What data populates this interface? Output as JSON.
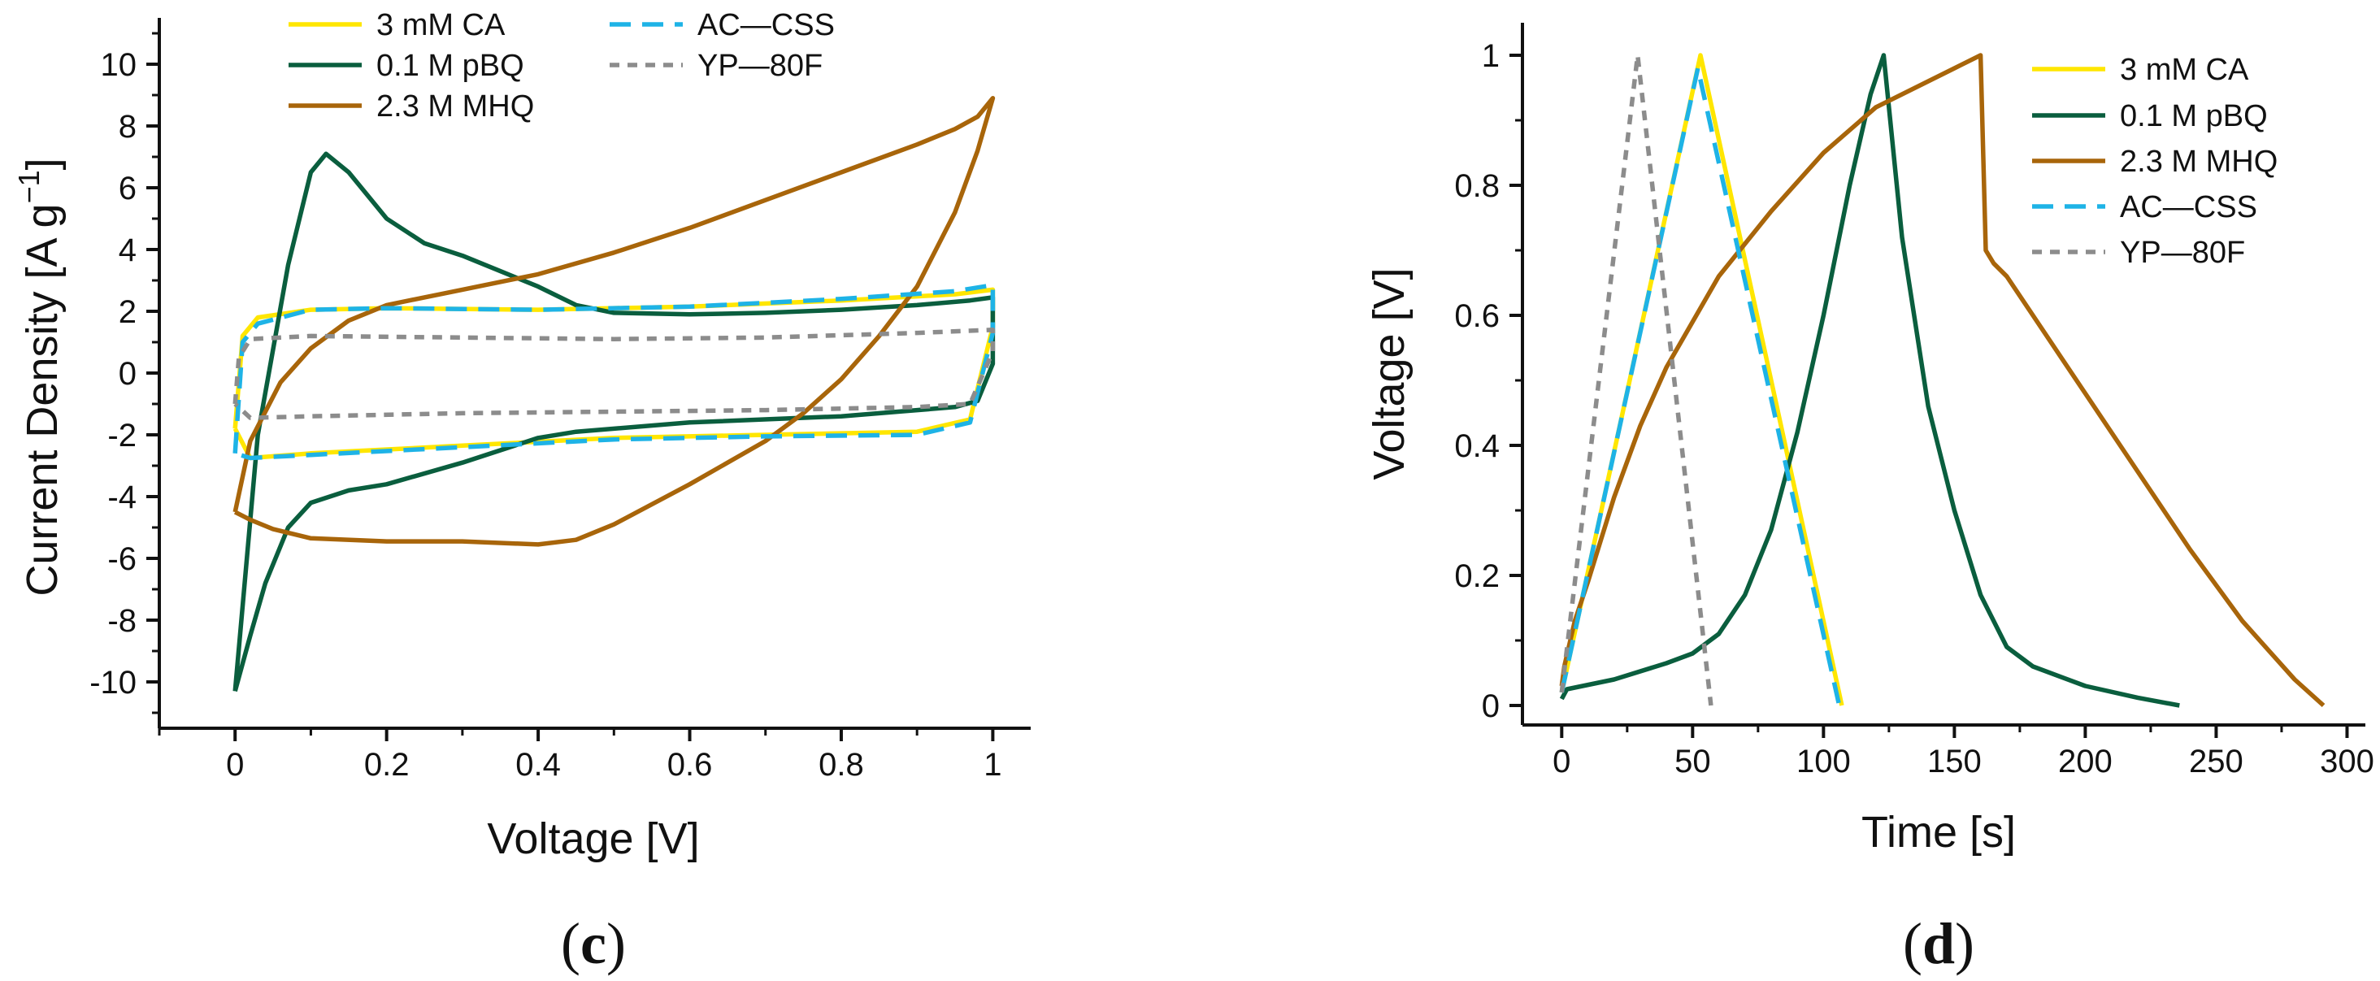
{
  "chart_data": [
    {
      "type": "line",
      "panel": "c",
      "xlabel": "Voltage [V]",
      "ylabel_main": "Current Density [A g",
      "ylabel_sup": "−1",
      "ylabel_end": "]",
      "xlim": [
        -0.1,
        1.05
      ],
      "ylim": [
        -11.5,
        11.5
      ],
      "xticks": [
        0,
        0.2,
        0.4,
        0.6,
        0.8,
        1
      ],
      "xtick_labels": [
        "0",
        "0.2",
        "0.4",
        "0.6",
        "0.8",
        "1"
      ],
      "yticks": [
        -10,
        -8,
        -6,
        -4,
        -2,
        0,
        2,
        4,
        6,
        8,
        10
      ],
      "ytick_labels": [
        "-10",
        "-8",
        "-6",
        "-4",
        "-2",
        "0",
        "2",
        "4",
        "6",
        "8",
        "10"
      ],
      "legend_position": "top",
      "series": [
        {
          "name": "3 mM CA",
          "color": "#FFE600",
          "dash": "solid",
          "x": [
            0.0,
            0.01,
            0.03,
            0.1,
            0.2,
            0.4,
            0.6,
            0.8,
            0.95,
            1.0,
            1.0,
            0.97,
            0.9,
            0.7,
            0.5,
            0.3,
            0.1,
            0.02,
            0.0
          ],
          "y": [
            -1.8,
            1.2,
            1.8,
            2.05,
            2.1,
            2.05,
            2.15,
            2.35,
            2.55,
            2.7,
            1.5,
            -1.5,
            -1.9,
            -2.0,
            -2.1,
            -2.35,
            -2.6,
            -2.75,
            -1.8
          ]
        },
        {
          "name": "0.1 M pBQ",
          "color": "#0A5E3E",
          "dash": "solid",
          "x": [
            0.0,
            0.03,
            0.07,
            0.1,
            0.12,
            0.15,
            0.2,
            0.25,
            0.3,
            0.35,
            0.4,
            0.45,
            0.5,
            0.6,
            0.7,
            0.8,
            0.9,
            0.97,
            1.0,
            1.0,
            0.98,
            0.95,
            0.9,
            0.8,
            0.6,
            0.45,
            0.4,
            0.3,
            0.2,
            0.15,
            0.1,
            0.07,
            0.04,
            0.02,
            0.0
          ],
          "y": [
            -10.3,
            -2.0,
            3.5,
            6.5,
            7.1,
            6.5,
            5.0,
            4.2,
            3.8,
            3.3,
            2.8,
            2.2,
            1.95,
            1.9,
            1.95,
            2.05,
            2.2,
            2.35,
            2.45,
            0.3,
            -0.9,
            -1.1,
            -1.2,
            -1.4,
            -1.6,
            -1.9,
            -2.1,
            -2.9,
            -3.6,
            -3.8,
            -4.2,
            -5.0,
            -6.8,
            -8.5,
            -10.3
          ]
        },
        {
          "name": "2.3 M MHQ",
          "color": "#A8650A",
          "dash": "solid",
          "x": [
            0.0,
            0.02,
            0.06,
            0.1,
            0.15,
            0.2,
            0.3,
            0.4,
            0.5,
            0.6,
            0.7,
            0.8,
            0.9,
            0.95,
            0.98,
            1.0,
            0.98,
            0.95,
            0.9,
            0.85,
            0.8,
            0.75,
            0.7,
            0.6,
            0.5,
            0.45,
            0.4,
            0.3,
            0.2,
            0.1,
            0.05,
            0.02,
            0.0
          ],
          "y": [
            -4.5,
            -2.2,
            -0.3,
            0.8,
            1.7,
            2.2,
            2.7,
            3.2,
            3.9,
            4.7,
            5.6,
            6.5,
            7.4,
            7.9,
            8.3,
            8.9,
            7.2,
            5.2,
            2.8,
            1.2,
            -0.2,
            -1.3,
            -2.2,
            -3.6,
            -4.9,
            -5.4,
            -5.55,
            -5.45,
            -5.45,
            -5.35,
            -5.05,
            -4.75,
            -4.5
          ]
        },
        {
          "name": "AC—CSS",
          "color": "#1EB3E6",
          "dash": "dashed",
          "x": [
            0.0,
            0.01,
            0.03,
            0.1,
            0.2,
            0.4,
            0.6,
            0.8,
            0.95,
            1.0,
            1.0,
            0.97,
            0.9,
            0.7,
            0.5,
            0.3,
            0.1,
            0.02,
            0.0
          ],
          "y": [
            -2.6,
            1.0,
            1.6,
            2.05,
            2.1,
            2.05,
            2.15,
            2.4,
            2.65,
            2.85,
            1.3,
            -1.6,
            -2.0,
            -2.05,
            -2.15,
            -2.4,
            -2.65,
            -2.75,
            -2.6
          ]
        },
        {
          "name": "YP—80F",
          "color": "#8C8C8C",
          "dash": "dotted",
          "x": [
            0.0,
            0.005,
            0.02,
            0.1,
            0.3,
            0.5,
            0.7,
            0.9,
            1.0,
            1.0,
            0.97,
            0.9,
            0.7,
            0.5,
            0.3,
            0.1,
            0.02,
            0.0
          ],
          "y": [
            -1.0,
            0.5,
            1.1,
            1.2,
            1.15,
            1.1,
            1.15,
            1.3,
            1.4,
            0.7,
            -1.0,
            -1.1,
            -1.2,
            -1.25,
            -1.3,
            -1.4,
            -1.45,
            -1.0
          ]
        }
      ]
    },
    {
      "type": "line",
      "panel": "d",
      "xlabel": "Time [s]",
      "ylabel": "Voltage [V]",
      "xlim": [
        -15,
        307
      ],
      "ylim": [
        -0.03,
        1.05
      ],
      "xticks": [
        0,
        50,
        100,
        150,
        200,
        250,
        300
      ],
      "xtick_labels": [
        "0",
        "50",
        "100",
        "150",
        "200",
        "250",
        "300"
      ],
      "yticks": [
        0,
        0.2,
        0.4,
        0.6,
        0.8,
        1
      ],
      "ytick_labels": [
        "0",
        "0.2",
        "0.4",
        "0.6",
        "0.8",
        "1"
      ],
      "legend_position": "top-right",
      "series": [
        {
          "name": "3 mM CA",
          "color": "#FFE600",
          "dash": "solid",
          "x": [
            0,
            53,
            107
          ],
          "y": [
            0.02,
            1.0,
            0.0
          ]
        },
        {
          "name": "0.1 M pBQ",
          "color": "#0A5E3E",
          "dash": "solid",
          "x": [
            0,
            2,
            20,
            40,
            50,
            60,
            70,
            80,
            90,
            100,
            110,
            118,
            123,
            130,
            140,
            150,
            160,
            170,
            180,
            200,
            220,
            236
          ],
          "y": [
            0.01,
            0.025,
            0.04,
            0.065,
            0.08,
            0.11,
            0.17,
            0.27,
            0.42,
            0.6,
            0.8,
            0.94,
            1.0,
            0.72,
            0.46,
            0.3,
            0.17,
            0.09,
            0.06,
            0.03,
            0.012,
            0.0
          ],
          "x2": [],
          "y2": []
        },
        {
          "name": "2.3 M MHQ",
          "color": "#A8650A",
          "dash": "solid",
          "x": [
            0,
            1,
            5,
            10,
            20,
            30,
            40,
            60,
            80,
            100,
            120,
            140,
            150,
            160,
            161,
            162,
            165,
            170,
            180,
            200,
            220,
            240,
            260,
            280,
            291
          ],
          "y": [
            0.03,
            0.06,
            0.13,
            0.19,
            0.32,
            0.43,
            0.52,
            0.66,
            0.76,
            0.85,
            0.92,
            0.96,
            0.98,
            1.0,
            0.85,
            0.7,
            0.68,
            0.66,
            0.6,
            0.48,
            0.36,
            0.24,
            0.13,
            0.04,
            0.0
          ]
        },
        {
          "name": "AC—CSS",
          "color": "#1EB3E6",
          "dash": "dashed",
          "x": [
            0,
            52,
            106
          ],
          "y": [
            0.02,
            0.98,
            0.0
          ]
        },
        {
          "name": "YP—80F",
          "color": "#8C8C8C",
          "dash": "dotted",
          "x": [
            0,
            29,
            57
          ],
          "y": [
            0.02,
            1.0,
            0.0
          ]
        }
      ]
    }
  ],
  "panel_labels": {
    "c_open": "(",
    "c_letter": "c",
    "c_close": ")",
    "d_open": "(",
    "d_letter": "d",
    "d_close": ")"
  }
}
